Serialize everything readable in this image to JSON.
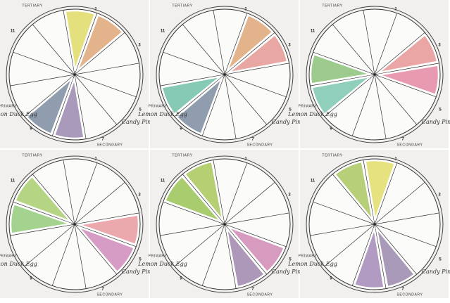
{
  "panels": [
    {
      "labels": [
        "TERTIARY",
        "1",
        "3",
        "5",
        "7",
        "9",
        "11",
        "PRIMARY",
        "SECONDARY",
        "Candy Pink",
        "Lemon Duck Egg"
      ]
    },
    {
      "labels": [
        "TERTIARY",
        "1",
        "3",
        "5",
        "7",
        "9",
        "11",
        "PRIMARY",
        "SECONDARY",
        "Candy Pink",
        "Lemon Duck Egg"
      ]
    },
    {
      "labels": [
        "TERTIARY",
        "1",
        "3",
        "5",
        "7",
        "9",
        "11",
        "PRIMARY",
        "SECONDARY",
        "Candy Pink",
        "Lemon Duck Egg"
      ]
    },
    {
      "labels": [
        "TERTIARY",
        "1",
        "3",
        "5",
        "7",
        "9",
        "11",
        "PRIMARY",
        "SECONDARY",
        "Candy Pink",
        "Lemon Duck Egg"
      ]
    },
    {
      "labels": [
        "TERTIARY",
        "1",
        "3",
        "5",
        "7",
        "9",
        "11",
        "PRIMARY",
        "SECONDARY",
        "Candy Pink",
        "Lemon Duck Egg"
      ]
    },
    {
      "labels": [
        "TERTIARY",
        "1",
        "3",
        "5",
        "7",
        "9",
        "11",
        "PRIMARY",
        "SECONDARY",
        "Candy Pink",
        "Lemon Duck Egg"
      ]
    }
  ]
}
